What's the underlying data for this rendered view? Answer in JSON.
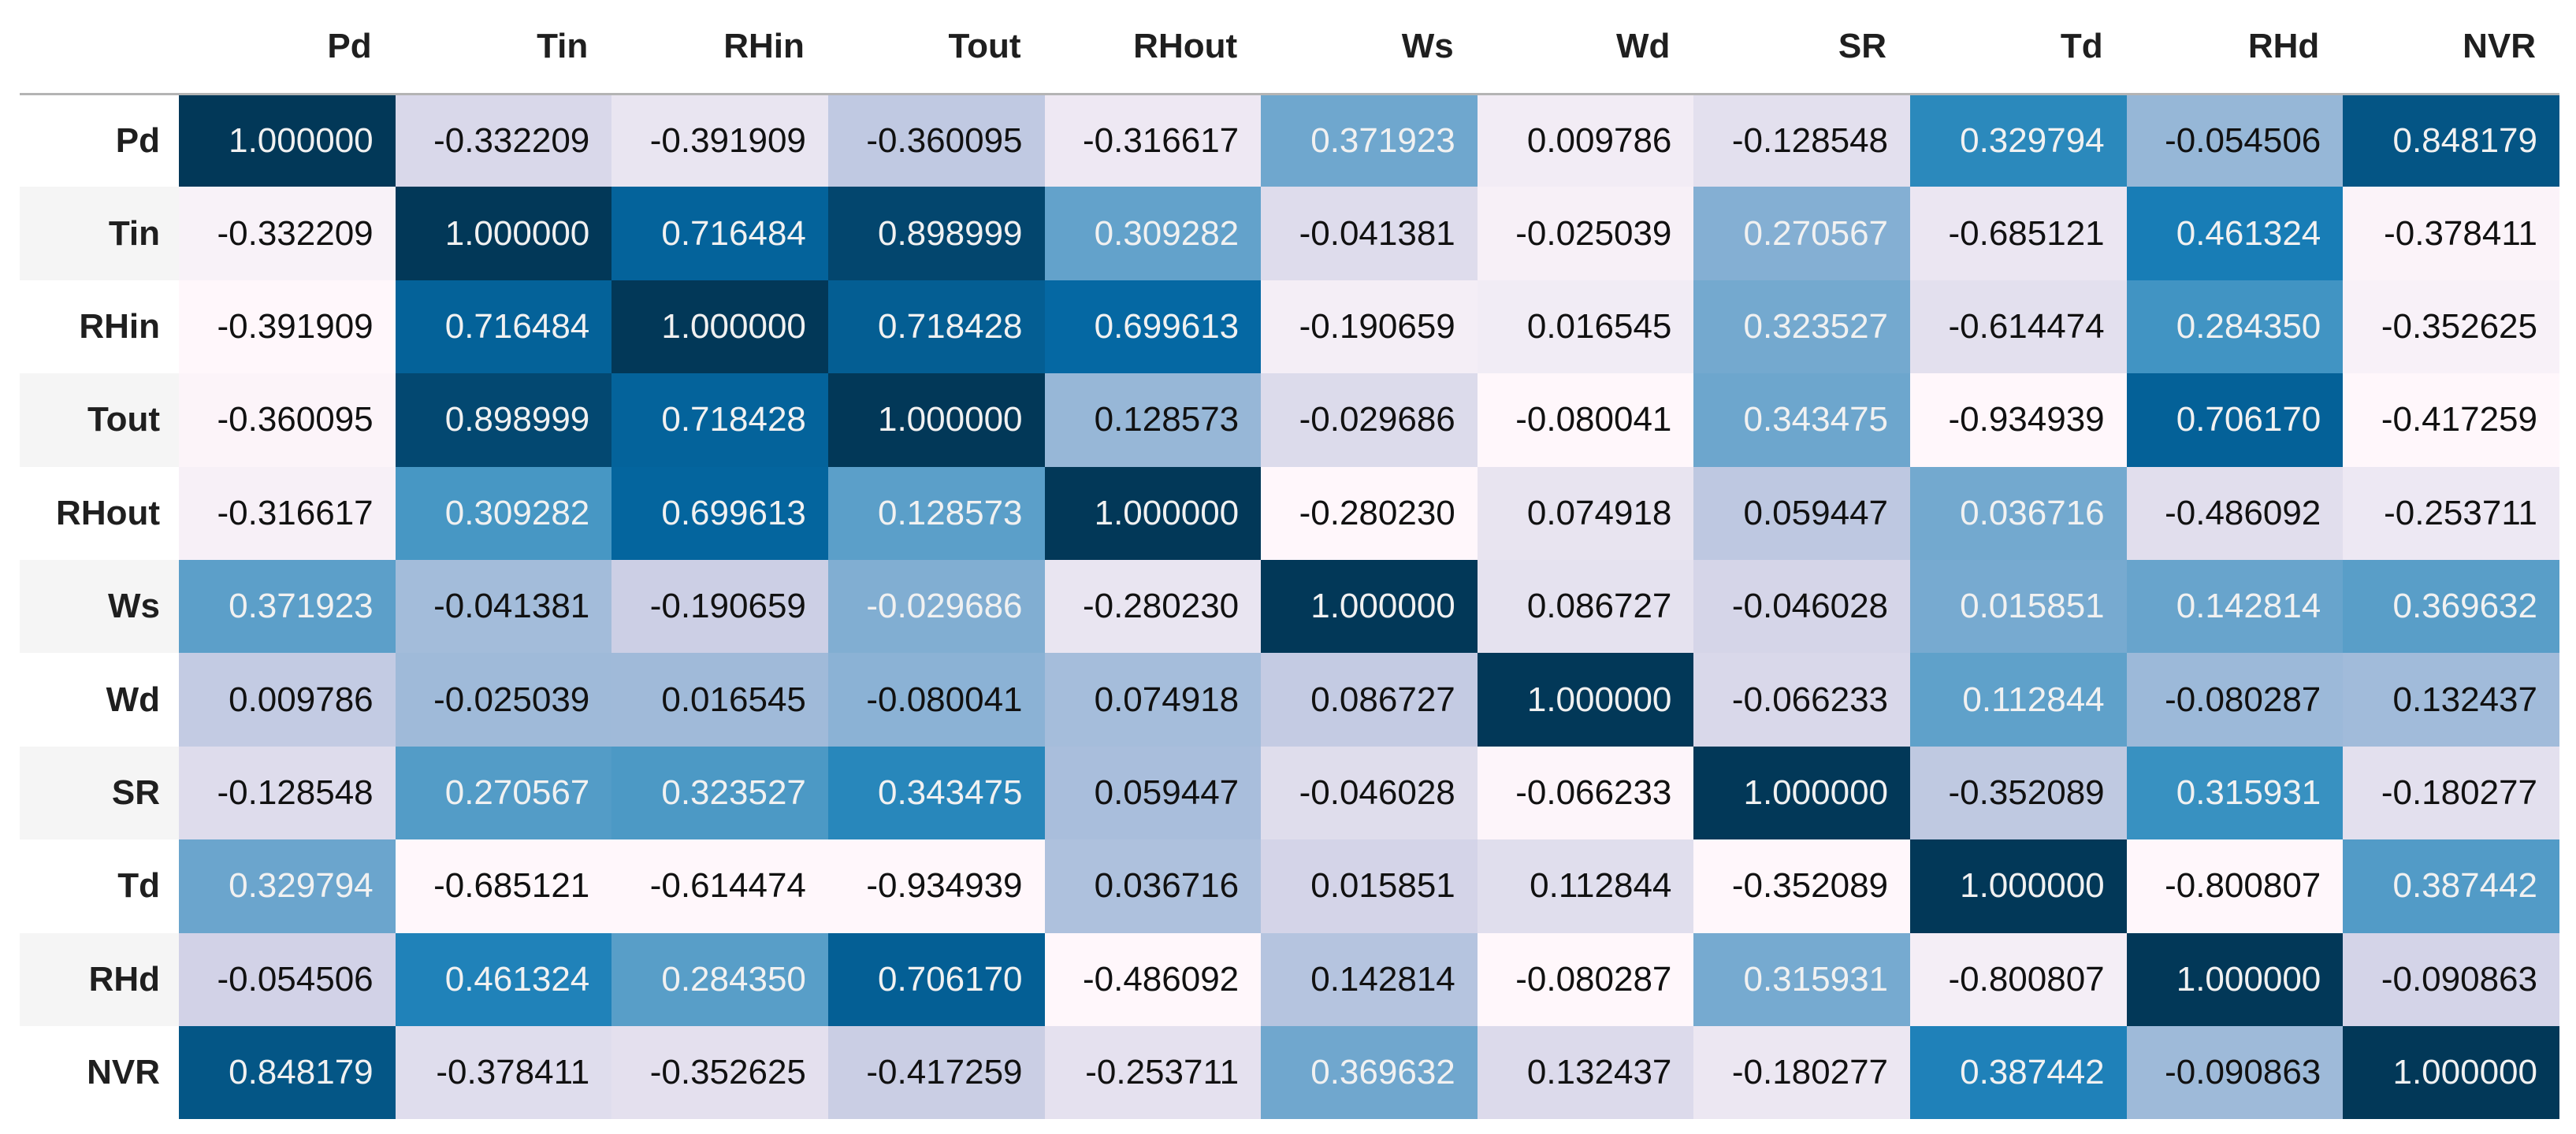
{
  "chart_data": {
    "type": "heatmap",
    "title": "",
    "x_labels": [
      "Pd",
      "Tin",
      "RHin",
      "Tout",
      "RHout",
      "Ws",
      "Wd",
      "SR",
      "Td",
      "RHd",
      "NVR"
    ],
    "y_labels": [
      "Pd",
      "Tin",
      "RHin",
      "Tout",
      "RHout",
      "Ws",
      "Wd",
      "SR",
      "Td",
      "RHd",
      "NVR"
    ],
    "matrix": [
      [
        1.0,
        -0.332209,
        -0.391909,
        -0.360095,
        -0.316617,
        0.371923,
        0.009786,
        -0.128548,
        0.329794,
        -0.054506,
        0.848179
      ],
      [
        -0.332209,
        1.0,
        0.716484,
        0.898999,
        0.309282,
        -0.041381,
        -0.025039,
        0.270567,
        -0.685121,
        0.461324,
        -0.378411
      ],
      [
        -0.391909,
        0.716484,
        1.0,
        0.718428,
        0.699613,
        -0.190659,
        0.016545,
        0.323527,
        -0.614474,
        0.28435,
        -0.352625
      ],
      [
        -0.360095,
        0.898999,
        0.718428,
        1.0,
        0.128573,
        -0.029686,
        -0.080041,
        0.343475,
        -0.934939,
        0.70617,
        -0.417259
      ],
      [
        -0.316617,
        0.309282,
        0.699613,
        0.128573,
        1.0,
        -0.28023,
        0.074918,
        0.059447,
        0.036716,
        -0.486092,
        -0.253711
      ],
      [
        0.371923,
        -0.041381,
        -0.190659,
        -0.029686,
        -0.28023,
        1.0,
        0.086727,
        -0.046028,
        0.015851,
        0.142814,
        0.369632
      ],
      [
        0.009786,
        -0.025039,
        0.016545,
        -0.080041,
        0.074918,
        0.086727,
        1.0,
        -0.066233,
        0.112844,
        -0.080287,
        0.132437
      ],
      [
        -0.128548,
        0.270567,
        0.323527,
        0.343475,
        0.059447,
        -0.046028,
        -0.066233,
        1.0,
        -0.352089,
        0.315931,
        -0.180277
      ],
      [
        0.329794,
        -0.685121,
        -0.614474,
        -0.934939,
        0.036716,
        0.015851,
        0.112844,
        -0.352089,
        1.0,
        -0.800807,
        0.387442
      ],
      [
        -0.054506,
        0.461324,
        0.28435,
        0.70617,
        -0.486092,
        0.142814,
        -0.080287,
        0.315931,
        -0.800807,
        1.0,
        -0.090863
      ],
      [
        0.848179,
        -0.378411,
        -0.352625,
        -0.417259,
        -0.253711,
        0.369632,
        0.132437,
        -0.180277,
        0.387442,
        -0.090863,
        1.0
      ]
    ],
    "value_decimals": 6,
    "normalization": "per-column-min-max",
    "legend": "none",
    "grid": "off"
  },
  "style": {
    "colormap_name": "PuBu",
    "colormap_stops": [
      [
        255,
        247,
        251
      ],
      [
        236,
        231,
        242
      ],
      [
        208,
        209,
        230
      ],
      [
        166,
        189,
        219
      ],
      [
        116,
        169,
        207
      ],
      [
        54,
        144,
        192
      ],
      [
        5,
        112,
        176
      ],
      [
        4,
        90,
        141
      ],
      [
        2,
        56,
        88
      ]
    ],
    "text_dark": "#111111",
    "text_light": "#f1f1f1",
    "luminance_threshold": 0.408,
    "header_text_color": "#1f1f1f",
    "row_stripe_color": "#f5f5f5",
    "row_label_bg": "#ffffff",
    "header_border_color": "#b4b4b4",
    "background": "#ffffff"
  }
}
